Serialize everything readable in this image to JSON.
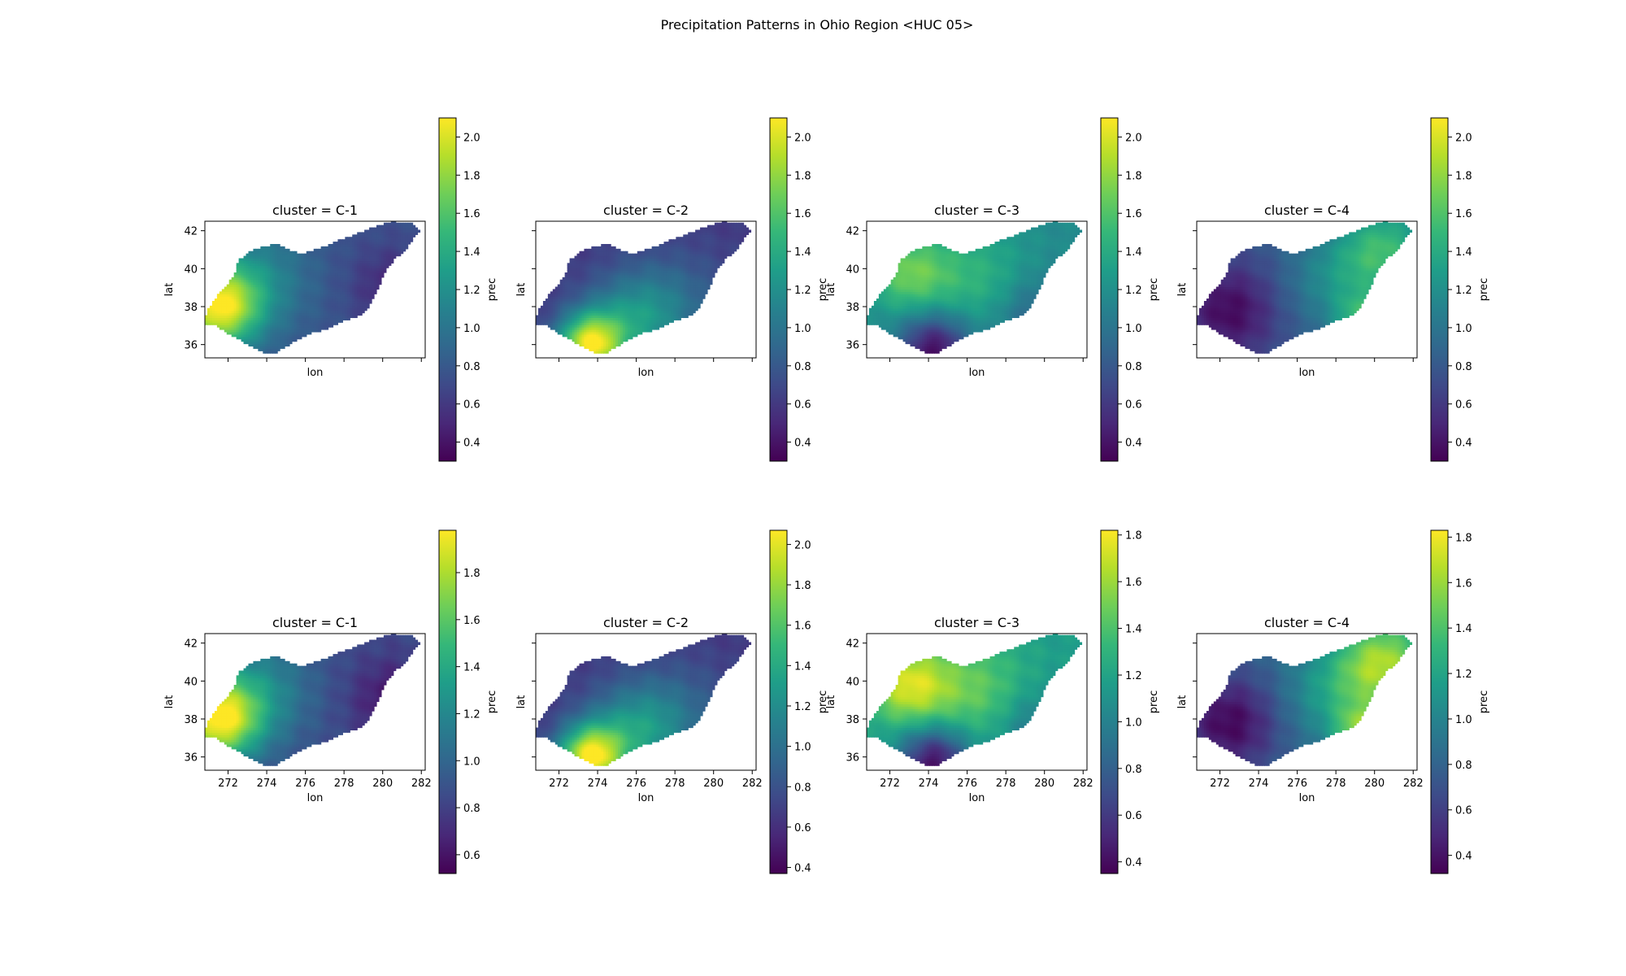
{
  "suptitle": "Precipitation Patterns in Ohio Region <HUC 05>",
  "colormap": {
    "name": "viridis",
    "stops": [
      "#440154",
      "#482878",
      "#3e4a89",
      "#31688e",
      "#26828e",
      "#1f9e89",
      "#35b779",
      "#6ece58",
      "#b5de2b",
      "#fde725"
    ]
  },
  "chart_data": [
    {
      "type": "heatmap",
      "title": "cluster = C-1",
      "xlabel": "lon",
      "ylabel": "lat",
      "xlim": [
        270.8,
        282.2
      ],
      "ylim": [
        35.3,
        42.5
      ],
      "xticks": [
        272,
        274,
        276,
        278,
        280,
        282
      ],
      "yticks": [
        36,
        38,
        40,
        42
      ],
      "show_xticklabels": false,
      "show_yticklabels": true,
      "colorbar": {
        "label": "prec",
        "range": [
          0.3,
          2.1
        ],
        "ticks": [
          0.4,
          0.6,
          0.8,
          1.0,
          1.2,
          1.4,
          1.6,
          1.8,
          2.0
        ]
      },
      "field": {
        "base": 0.75,
        "centers": [
          {
            "lon": 271.5,
            "lat": 38.0,
            "amp": 1.25,
            "r": 1.5
          },
          {
            "lon": 273.5,
            "lat": 39.5,
            "amp": 0.35,
            "r": 2.0
          },
          {
            "lon": 280.5,
            "lat": 39.0,
            "amp": -0.25,
            "r": 1.5
          }
        ]
      }
    },
    {
      "type": "heatmap",
      "title": "cluster = C-2",
      "xlabel": "lon",
      "ylabel": "lat",
      "xlim": [
        270.8,
        282.2
      ],
      "ylim": [
        35.3,
        42.5
      ],
      "xticks": [
        272,
        274,
        276,
        278,
        280,
        282
      ],
      "yticks": [
        36,
        38,
        40,
        42
      ],
      "show_xticklabels": false,
      "show_yticklabels": false,
      "colorbar": {
        "label": "prec",
        "range": [
          0.3,
          2.1
        ],
        "ticks": [
          0.4,
          0.6,
          0.8,
          1.0,
          1.2,
          1.4,
          1.6,
          1.8,
          2.0
        ]
      },
      "field": {
        "base": 0.6,
        "centers": [
          {
            "lon": 273.6,
            "lat": 36.0,
            "amp": 1.35,
            "r": 1.2
          },
          {
            "lon": 276.0,
            "lat": 37.3,
            "amp": 0.6,
            "r": 1.8
          },
          {
            "lon": 278.5,
            "lat": 38.5,
            "amp": 0.2,
            "r": 2.0
          }
        ]
      }
    },
    {
      "type": "heatmap",
      "title": "cluster = C-3",
      "xlabel": "lon",
      "ylabel": "lat",
      "xlim": [
        270.8,
        282.2
      ],
      "ylim": [
        35.3,
        42.5
      ],
      "xticks": [
        272,
        274,
        276,
        278,
        280,
        282
      ],
      "yticks": [
        36,
        38,
        40,
        42
      ],
      "show_xticklabels": false,
      "show_yticklabels": true,
      "colorbar": {
        "label": "prec",
        "range": [
          0.3,
          2.1
        ],
        "ticks": [
          0.4,
          0.6,
          0.8,
          1.0,
          1.2,
          1.4,
          1.6,
          1.8,
          2.0
        ]
      },
      "field": {
        "base": 1.15,
        "centers": [
          {
            "lon": 273.0,
            "lat": 39.8,
            "amp": 0.5,
            "r": 1.5
          },
          {
            "lon": 276.5,
            "lat": 39.5,
            "amp": 0.3,
            "r": 2.0
          },
          {
            "lon": 274.3,
            "lat": 35.8,
            "amp": -0.8,
            "r": 1.3
          },
          {
            "lon": 279.5,
            "lat": 37.5,
            "amp": -0.3,
            "r": 1.5
          }
        ]
      }
    },
    {
      "type": "heatmap",
      "title": "cluster = C-4",
      "xlabel": "lon",
      "ylabel": "lat",
      "xlim": [
        270.8,
        282.2
      ],
      "ylim": [
        35.3,
        42.5
      ],
      "xticks": [
        272,
        274,
        276,
        278,
        280,
        282
      ],
      "yticks": [
        36,
        38,
        40,
        42
      ],
      "show_xticklabels": false,
      "show_yticklabels": false,
      "colorbar": {
        "label": "prec",
        "range": [
          0.3,
          2.1
        ],
        "ticks": [
          0.4,
          0.6,
          0.8,
          1.0,
          1.2,
          1.4,
          1.6,
          1.8,
          2.0
        ]
      },
      "field": {
        "base": 0.8,
        "centers": [
          {
            "lon": 280.5,
            "lat": 41.0,
            "amp": 0.7,
            "r": 1.8
          },
          {
            "lon": 279.3,
            "lat": 37.3,
            "amp": 0.55,
            "r": 1.0
          },
          {
            "lon": 277.8,
            "lat": 39.3,
            "amp": 0.3,
            "r": 1.8
          },
          {
            "lon": 272.5,
            "lat": 37.8,
            "amp": -0.45,
            "r": 1.8
          }
        ]
      }
    },
    {
      "type": "heatmap",
      "title": "cluster = C-1",
      "xlabel": "lon",
      "ylabel": "lat",
      "xlim": [
        270.8,
        282.2
      ],
      "ylim": [
        35.3,
        42.5
      ],
      "xticks": [
        272,
        274,
        276,
        278,
        280,
        282
      ],
      "yticks": [
        36,
        38,
        40,
        42
      ],
      "show_xticklabels": true,
      "show_yticklabels": true,
      "colorbar": {
        "label": "prec",
        "range": [
          0.52,
          1.98
        ],
        "ticks": [
          0.6,
          0.8,
          1.0,
          1.2,
          1.4,
          1.6,
          1.8
        ]
      },
      "field": {
        "base": 0.85,
        "centers": [
          {
            "lon": 271.5,
            "lat": 38.0,
            "amp": 1.05,
            "r": 1.5
          },
          {
            "lon": 273.5,
            "lat": 39.5,
            "amp": 0.35,
            "r": 2.0
          },
          {
            "lon": 280.5,
            "lat": 39.0,
            "amp": -0.25,
            "r": 1.5
          }
        ]
      }
    },
    {
      "type": "heatmap",
      "title": "cluster = C-2",
      "xlabel": "lon",
      "ylabel": "lat",
      "xlim": [
        270.8,
        282.2
      ],
      "ylim": [
        35.3,
        42.5
      ],
      "xticks": [
        272,
        274,
        276,
        278,
        280,
        282
      ],
      "yticks": [
        36,
        38,
        40,
        42
      ],
      "show_xticklabels": true,
      "show_yticklabels": false,
      "colorbar": {
        "label": "prec",
        "range": [
          0.37,
          2.07
        ],
        "ticks": [
          0.4,
          0.6,
          0.8,
          1.0,
          1.2,
          1.4,
          1.6,
          1.8,
          2.0
        ]
      },
      "field": {
        "base": 0.65,
        "centers": [
          {
            "lon": 273.6,
            "lat": 36.0,
            "amp": 1.3,
            "r": 1.2
          },
          {
            "lon": 276.0,
            "lat": 37.3,
            "amp": 0.6,
            "r": 1.8
          },
          {
            "lon": 278.5,
            "lat": 38.5,
            "amp": 0.2,
            "r": 2.0
          }
        ]
      }
    },
    {
      "type": "heatmap",
      "title": "cluster = C-3",
      "xlabel": "lon",
      "ylabel": "lat",
      "xlim": [
        270.8,
        282.2
      ],
      "ylim": [
        35.3,
        42.5
      ],
      "xticks": [
        272,
        274,
        276,
        278,
        280,
        282
      ],
      "yticks": [
        36,
        38,
        40,
        42
      ],
      "show_xticklabels": true,
      "show_yticklabels": true,
      "colorbar": {
        "label": "prec",
        "range": [
          0.35,
          1.82
        ],
        "ticks": [
          0.4,
          0.6,
          0.8,
          1.0,
          1.2,
          1.4,
          1.6,
          1.8
        ]
      },
      "field": {
        "base": 1.15,
        "centers": [
          {
            "lon": 273.0,
            "lat": 39.8,
            "amp": 0.55,
            "r": 1.5
          },
          {
            "lon": 276.5,
            "lat": 39.5,
            "amp": 0.3,
            "r": 2.0
          },
          {
            "lon": 274.3,
            "lat": 35.8,
            "amp": -0.75,
            "r": 1.3
          },
          {
            "lon": 279.5,
            "lat": 37.5,
            "amp": -0.25,
            "r": 1.5
          }
        ]
      }
    },
    {
      "type": "heatmap",
      "title": "cluster = C-4",
      "xlabel": "lon",
      "ylabel": "lat",
      "xlim": [
        270.8,
        282.2
      ],
      "ylim": [
        35.3,
        42.5
      ],
      "xticks": [
        272,
        274,
        276,
        278,
        280,
        282
      ],
      "yticks": [
        36,
        38,
        40,
        42
      ],
      "show_xticklabels": true,
      "show_yticklabels": false,
      "colorbar": {
        "label": "prec",
        "range": [
          0.32,
          1.83
        ],
        "ticks": [
          0.4,
          0.6,
          0.8,
          1.0,
          1.2,
          1.4,
          1.6,
          1.8
        ]
      },
      "field": {
        "base": 0.8,
        "centers": [
          {
            "lon": 280.5,
            "lat": 41.0,
            "amp": 0.8,
            "r": 1.8
          },
          {
            "lon": 279.3,
            "lat": 37.3,
            "amp": 0.6,
            "r": 1.0
          },
          {
            "lon": 277.8,
            "lat": 39.3,
            "amp": 0.3,
            "r": 1.8
          },
          {
            "lon": 272.5,
            "lat": 37.8,
            "amp": -0.45,
            "r": 1.8
          }
        ]
      }
    }
  ],
  "region_outline": [
    [
      270.8,
      37.4
    ],
    [
      271.0,
      37.9
    ],
    [
      271.3,
      38.4
    ],
    [
      271.7,
      38.9
    ],
    [
      272.3,
      39.6
    ],
    [
      272.5,
      40.4
    ],
    [
      273.1,
      40.9
    ],
    [
      274.0,
      41.2
    ],
    [
      274.6,
      41.3
    ],
    [
      275.1,
      41.0
    ],
    [
      275.8,
      40.8
    ],
    [
      276.5,
      41.0
    ],
    [
      277.3,
      41.3
    ],
    [
      278.0,
      41.6
    ],
    [
      278.8,
      41.9
    ],
    [
      279.5,
      42.2
    ],
    [
      280.5,
      42.5
    ],
    [
      281.5,
      42.4
    ],
    [
      282.0,
      42.0
    ],
    [
      281.6,
      41.6
    ],
    [
      281.2,
      41.0
    ],
    [
      280.6,
      40.5
    ],
    [
      280.1,
      39.8
    ],
    [
      279.8,
      39.0
    ],
    [
      279.5,
      38.4
    ],
    [
      279.2,
      37.9
    ],
    [
      278.9,
      37.6
    ],
    [
      278.5,
      37.4
    ],
    [
      278.0,
      37.3
    ],
    [
      277.6,
      37.1
    ],
    [
      277.0,
      36.8
    ],
    [
      276.3,
      36.6
    ],
    [
      275.6,
      36.3
    ],
    [
      275.0,
      35.9
    ],
    [
      274.5,
      35.6
    ],
    [
      274.0,
      35.5
    ],
    [
      273.4,
      35.8
    ],
    [
      272.7,
      36.2
    ],
    [
      272.0,
      36.6
    ],
    [
      271.4,
      37.0
    ],
    [
      270.8,
      37.1
    ]
  ]
}
